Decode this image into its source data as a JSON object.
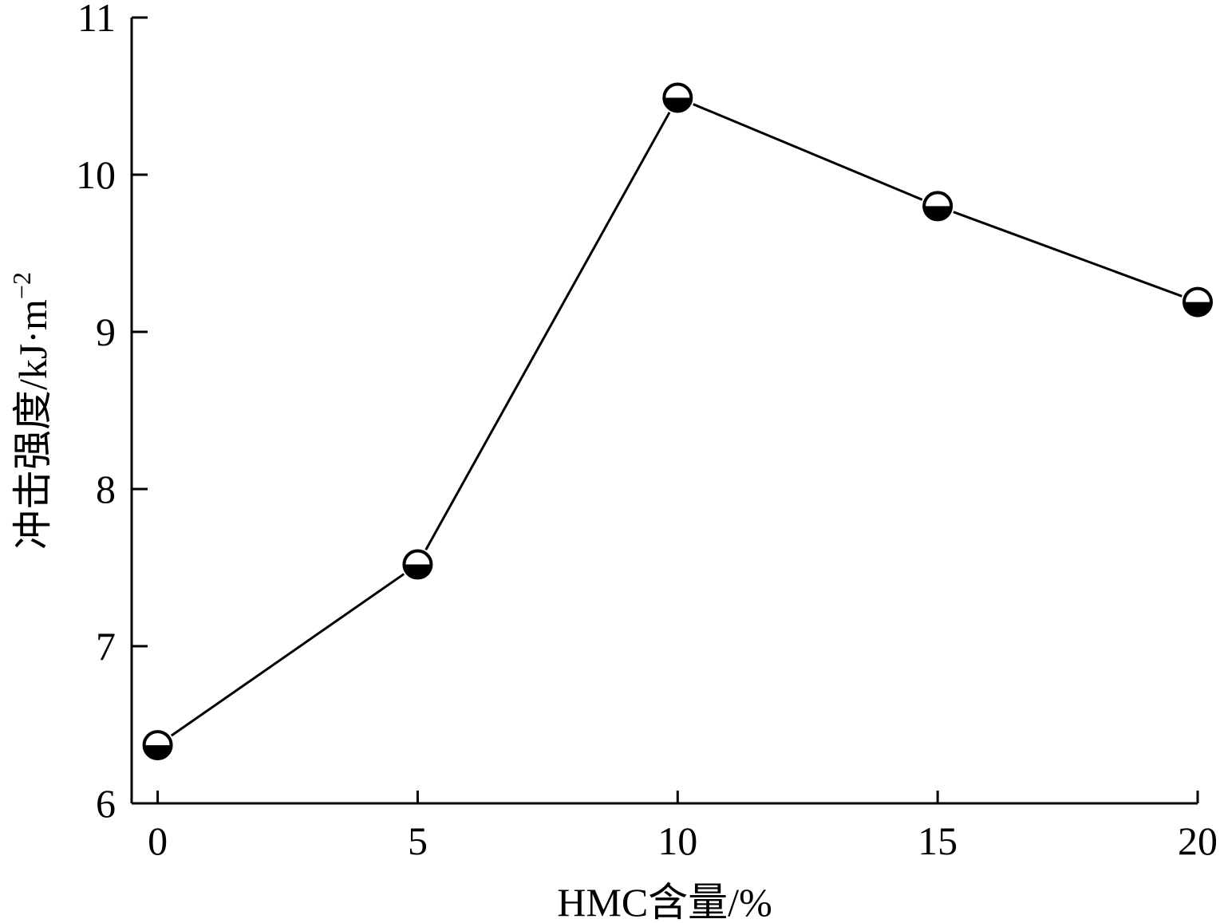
{
  "chart_data": {
    "type": "line",
    "title": "",
    "xlabel": "HMC含量/%",
    "ylabel": "冲击强度/kJ·m",
    "ylabel_sup": "−2",
    "x": [
      0,
      5,
      10,
      15,
      20
    ],
    "series": [
      {
        "values": [
          6.37,
          7.52,
          10.49,
          9.8,
          9.19
        ],
        "marker": "half-filled-circle",
        "color": "#000000"
      }
    ],
    "xlim": [
      -0.5,
      20
    ],
    "ylim": [
      6,
      11
    ],
    "xticks": [
      0,
      5,
      10,
      15,
      20
    ],
    "xtick_labels": [
      "0",
      "5",
      "10",
      "15",
      "20"
    ],
    "yticks": [
      6,
      7,
      8,
      9,
      10,
      11
    ],
    "ytick_labels": [
      "6",
      "7",
      "8",
      "9",
      "10",
      "11"
    ],
    "grid": false,
    "legend": "none"
  }
}
